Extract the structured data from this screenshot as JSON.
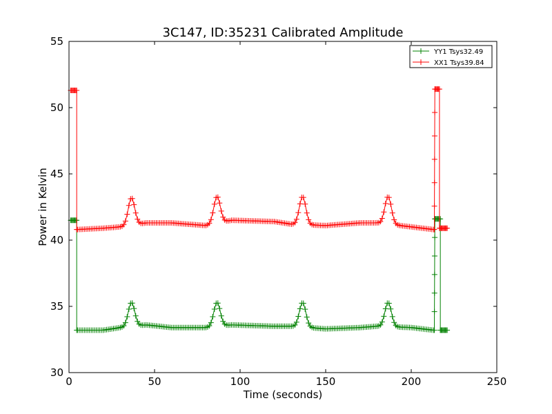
{
  "chart_data": {
    "type": "line",
    "title": "3C147, ID:35231 Calibrated Amplitude",
    "xlabel": "Time (seconds)",
    "ylabel": "Power in Kelvin",
    "xlim": [
      0,
      250
    ],
    "ylim": [
      30,
      55
    ],
    "xticks": [
      "0",
      "50",
      "100",
      "150",
      "200",
      "250"
    ],
    "yticks": [
      "30",
      "35",
      "40",
      "45",
      "50",
      "55"
    ],
    "grid": false,
    "legend_position": "top-right",
    "marker": "+",
    "series": [
      {
        "name": "YY1 Tsys32.49",
        "color": "#008000",
        "baseline": [
          [
            5,
            33.2
          ],
          [
            20,
            33.2
          ],
          [
            30,
            33.4
          ],
          [
            45,
            33.6
          ],
          [
            60,
            33.4
          ],
          [
            80,
            33.4
          ],
          [
            95,
            33.6
          ],
          [
            120,
            33.5
          ],
          [
            130,
            33.5
          ],
          [
            150,
            33.3
          ],
          [
            170,
            33.4
          ],
          [
            180,
            33.5
          ],
          [
            200,
            33.4
          ],
          [
            213,
            33.2
          ]
        ],
        "peaks": [
          [
            36.5,
            35.3
          ],
          [
            86.5,
            35.3
          ],
          [
            136.5,
            35.3
          ],
          [
            186.5,
            35.3
          ]
        ],
        "edges": {
          "left_level": 41.5,
          "left_x": [
            1,
            4
          ],
          "left_drop_x": 4.5,
          "right_rise_x": 213.5,
          "right_level": 41.6,
          "right_x": [
            214,
            216.5
          ],
          "right_drop_x": 217,
          "end_level": 33.2,
          "end_x": [
            217,
            221
          ]
        }
      },
      {
        "name": "XX1 Tsys39.84",
        "color": "#ff0000",
        "baseline": [
          [
            5,
            40.8
          ],
          [
            20,
            40.9
          ],
          [
            30,
            41.0
          ],
          [
            45,
            41.3
          ],
          [
            60,
            41.3
          ],
          [
            80,
            41.1
          ],
          [
            95,
            41.5
          ],
          [
            120,
            41.4
          ],
          [
            130,
            41.2
          ],
          [
            150,
            41.1
          ],
          [
            170,
            41.3
          ],
          [
            180,
            41.3
          ],
          [
            200,
            41.0
          ],
          [
            213,
            40.8
          ]
        ],
        "peaks": [
          [
            36.5,
            43.2
          ],
          [
            86.5,
            43.3
          ],
          [
            136.5,
            43.3
          ],
          [
            186.5,
            43.3
          ]
        ],
        "edges": {
          "left_level": 51.3,
          "left_x": [
            1,
            4
          ],
          "left_drop_x": 4.5,
          "right_rise_x": 213.5,
          "right_level": 51.4,
          "right_x": [
            214,
            216
          ],
          "right_drop_x": 216.5,
          "end_level": 40.9,
          "end_x": [
            217,
            221
          ]
        }
      }
    ]
  }
}
